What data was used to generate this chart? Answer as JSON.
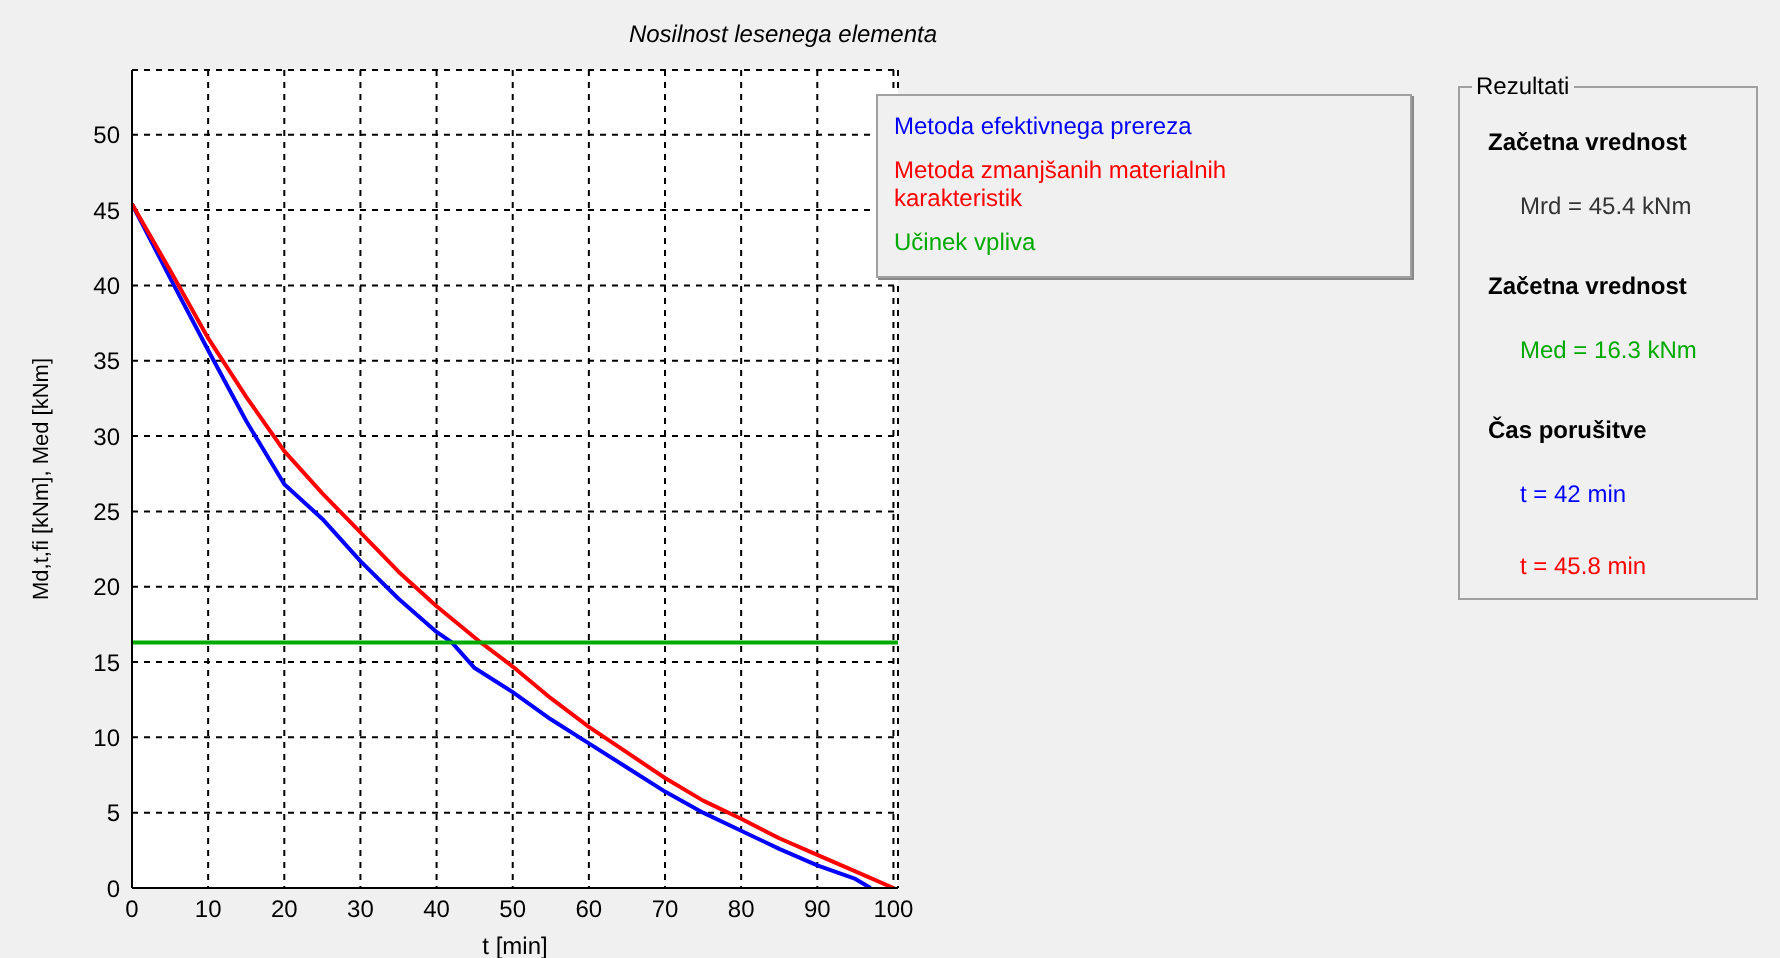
{
  "chart_data": [
    {
      "type": "line",
      "title": "Nosilnost lesenega elementa",
      "xlabel": "t [min]",
      "ylabel": "Md,t,fi [kNm], Med [kNm]",
      "xlim": [
        0,
        100.6
      ],
      "ylim": [
        0,
        54.3
      ],
      "xticks": [
        0,
        10,
        20,
        30,
        40,
        50,
        60,
        70,
        80,
        90,
        100
      ],
      "yticks": [
        0,
        5,
        10,
        15,
        20,
        25,
        30,
        35,
        40,
        45,
        50
      ],
      "grid": true,
      "legend": "top right",
      "marker": "none",
      "line_style": "solid",
      "series": [
        {
          "name": "Metoda efektivnega prereza",
          "color": "#0000ff",
          "x": [
            0,
            5,
            10,
            15,
            20,
            25,
            30,
            35,
            40,
            42,
            45,
            50,
            55,
            60,
            65,
            70,
            75,
            80,
            85,
            90,
            95,
            97
          ],
          "values": [
            45.4,
            40.5,
            35.7,
            31,
            26.8,
            24.5,
            21.7,
            19.2,
            17,
            16.3,
            14.6,
            13,
            11.2,
            9.6,
            8,
            6.4,
            5,
            3.8,
            2.6,
            1.5,
            0.6,
            0
          ]
        },
        {
          "name": "Metoda zmanjšanih materialnih karakteristik",
          "color": "#ff0000",
          "x": [
            0,
            5,
            10,
            15,
            20,
            25,
            30,
            35,
            40,
            45.8,
            50,
            55,
            60,
            65,
            70,
            75,
            80,
            85,
            90,
            95,
            100
          ],
          "values": [
            45.4,
            41,
            36.5,
            32.6,
            29,
            26.2,
            23.6,
            21,
            18.7,
            16.3,
            14.7,
            12.6,
            10.7,
            9,
            7.3,
            5.8,
            4.6,
            3.3,
            2.2,
            1.1,
            0
          ]
        },
        {
          "name": "Učinek vpliva",
          "color": "#00aa00",
          "x": [
            0,
            100.6
          ],
          "values": [
            16.3,
            16.3
          ]
        }
      ]
    },
    {
      "type": "other",
      "title": "Rezultati",
      "annotations": [
        "Začetna vrednost",
        "Mrd = 45.4 kNm",
        "Začetna vrednost",
        "Med = 16.3 kNm",
        "Čas porušitve",
        "t = 42 min",
        "t = 45.8 min"
      ]
    }
  ]
}
